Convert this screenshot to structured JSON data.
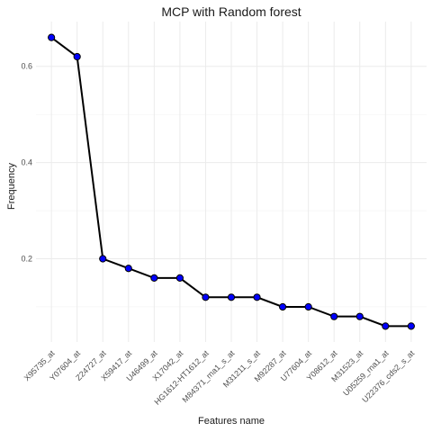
{
  "chart_data": {
    "type": "line",
    "title": "MCP with Random forest",
    "xlabel": "Features name",
    "ylabel": "Frequency",
    "categories": [
      "X95735_at",
      "Y07604_at",
      "Z24727_at",
      "X59417_at",
      "U46499_at",
      "X17042_at",
      "HG1612-HT1612_at",
      "M84371_rna1_s_at",
      "M31211_s_at",
      "M92287_at",
      "U77604_at",
      "Y08612_at",
      "M31523_at",
      "U05259_rna1_at",
      "U22376_cds2_s_at"
    ],
    "values": [
      0.66,
      0.62,
      0.2,
      0.18,
      0.16,
      0.16,
      0.12,
      0.12,
      0.12,
      0.1,
      0.1,
      0.08,
      0.08,
      0.06,
      0.06
    ],
    "ylim": [
      0.027,
      0.693
    ],
    "yticks": [
      0.2,
      0.4,
      0.6
    ],
    "ytick_labels": [
      "0.2",
      "0.4",
      "0.6"
    ],
    "grid": true,
    "colors": {
      "line": "#000000",
      "point": "#0000ff",
      "grid": "#ebebeb"
    }
  }
}
